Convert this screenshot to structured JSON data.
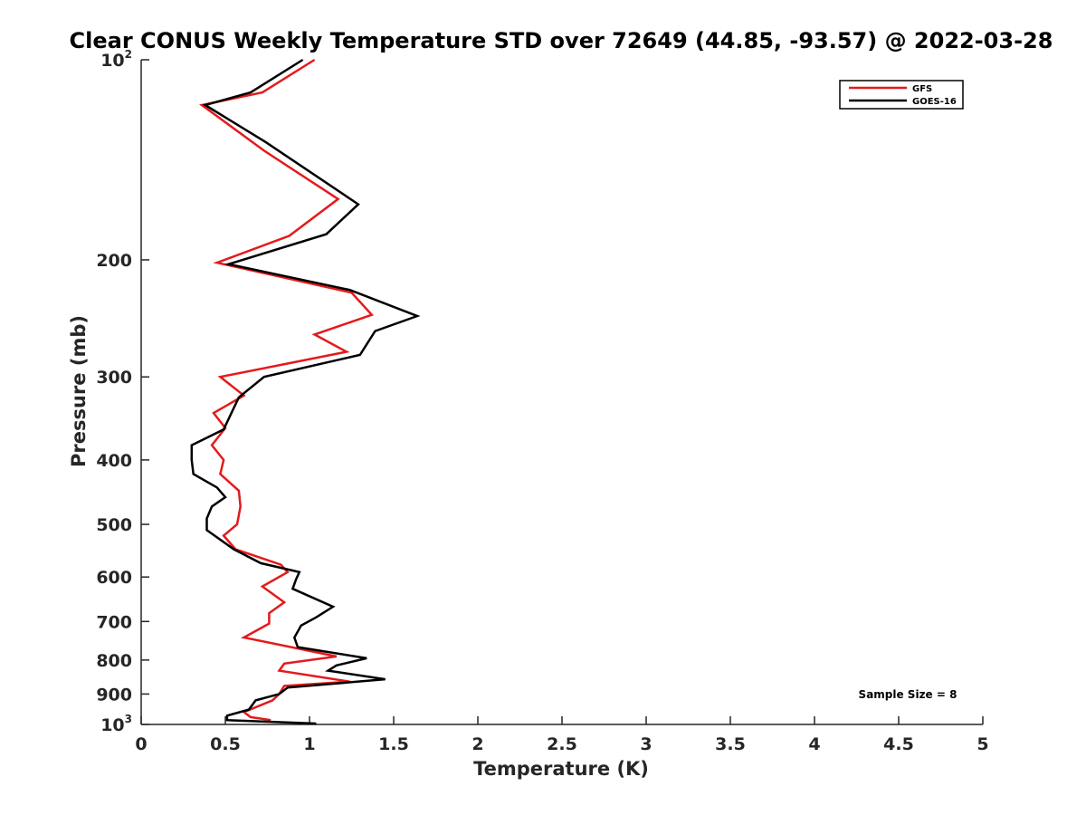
{
  "chart_data": {
    "type": "line",
    "title": "Clear CONUS Weekly Temperature STD over 72649 (44.85, -93.57) @ 2022-03-28",
    "xlabel": "Temperature (K)",
    "ylabel": "Pressure (mb)",
    "xlim": [
      0,
      5
    ],
    "ylim": [
      100,
      1000
    ],
    "y_scale": "log",
    "y_reversed": true,
    "grid": false,
    "legend_position": "top-right",
    "x_ticks": [
      "0",
      "0.5",
      "1",
      "1.5",
      "2",
      "2.5",
      "3",
      "3.5",
      "4",
      "4.5",
      "5"
    ],
    "y_ticks": [
      {
        "value": 100,
        "base": "10",
        "exp": "2"
      },
      {
        "value": 200,
        "label": "200"
      },
      {
        "value": 300,
        "label": "300"
      },
      {
        "value": 400,
        "label": "400"
      },
      {
        "value": 500,
        "label": "500"
      },
      {
        "value": 600,
        "label": "600"
      },
      {
        "value": 700,
        "label": "700"
      },
      {
        "value": 800,
        "label": "800"
      },
      {
        "value": 900,
        "label": "900"
      },
      {
        "value": 1000,
        "base": "10",
        "exp": "3"
      }
    ],
    "series": [
      {
        "name": "GFS",
        "color": "#e41a1c",
        "points": [
          [
            1.03,
            100
          ],
          [
            0.72,
            112
          ],
          [
            0.36,
            117
          ],
          [
            0.73,
            137
          ],
          [
            1.17,
            162
          ],
          [
            0.88,
            184
          ],
          [
            0.45,
            202
          ],
          [
            1.25,
            224
          ],
          [
            1.37,
            242
          ],
          [
            1.03,
            259
          ],
          [
            1.22,
            275
          ],
          [
            0.47,
            300
          ],
          [
            0.61,
            320
          ],
          [
            0.43,
            340
          ],
          [
            0.5,
            358
          ],
          [
            0.42,
            380
          ],
          [
            0.49,
            400
          ],
          [
            0.47,
            420
          ],
          [
            0.58,
            445
          ],
          [
            0.59,
            470
          ],
          [
            0.57,
            500
          ],
          [
            0.49,
            520
          ],
          [
            0.56,
            545
          ],
          [
            0.83,
            575
          ],
          [
            0.87,
            590
          ],
          [
            0.72,
            620
          ],
          [
            0.85,
            655
          ],
          [
            0.76,
            680
          ],
          [
            0.76,
            705
          ],
          [
            0.61,
            740
          ],
          [
            1.16,
            790
          ],
          [
            0.85,
            810
          ],
          [
            0.82,
            830
          ],
          [
            1.24,
            862
          ],
          [
            0.85,
            875
          ],
          [
            0.82,
            900
          ],
          [
            0.78,
            920
          ],
          [
            0.61,
            958
          ],
          [
            0.65,
            975
          ],
          [
            0.77,
            985
          ]
        ]
      },
      {
        "name": "GOES-16",
        "color": "#000000",
        "points": [
          [
            0.96,
            100
          ],
          [
            0.65,
            112
          ],
          [
            0.38,
            117
          ],
          [
            0.74,
            133
          ],
          [
            1.29,
            165
          ],
          [
            1.1,
            183
          ],
          [
            0.52,
            203
          ],
          [
            1.24,
            222
          ],
          [
            1.64,
            243
          ],
          [
            1.39,
            256
          ],
          [
            1.3,
            278
          ],
          [
            0.73,
            300
          ],
          [
            0.58,
            322
          ],
          [
            0.49,
            360
          ],
          [
            0.3,
            380
          ],
          [
            0.3,
            400
          ],
          [
            0.31,
            420
          ],
          [
            0.45,
            440
          ],
          [
            0.5,
            455
          ],
          [
            0.42,
            470
          ],
          [
            0.39,
            490
          ],
          [
            0.39,
            510
          ],
          [
            0.55,
            545
          ],
          [
            0.71,
            572
          ],
          [
            0.94,
            590
          ],
          [
            0.92,
            605
          ],
          [
            0.9,
            625
          ],
          [
            1.14,
            665
          ],
          [
            1.04,
            690
          ],
          [
            0.95,
            710
          ],
          [
            0.91,
            740
          ],
          [
            0.93,
            765
          ],
          [
            1.34,
            795
          ],
          [
            1.16,
            815
          ],
          [
            1.11,
            830
          ],
          [
            1.45,
            855
          ],
          [
            0.87,
            880
          ],
          [
            0.82,
            900
          ],
          [
            0.68,
            920
          ],
          [
            0.64,
            950
          ],
          [
            0.51,
            970
          ],
          [
            0.51,
            985
          ],
          [
            1.04,
            997
          ]
        ]
      }
    ],
    "annotation": "Sample Size = 8"
  }
}
